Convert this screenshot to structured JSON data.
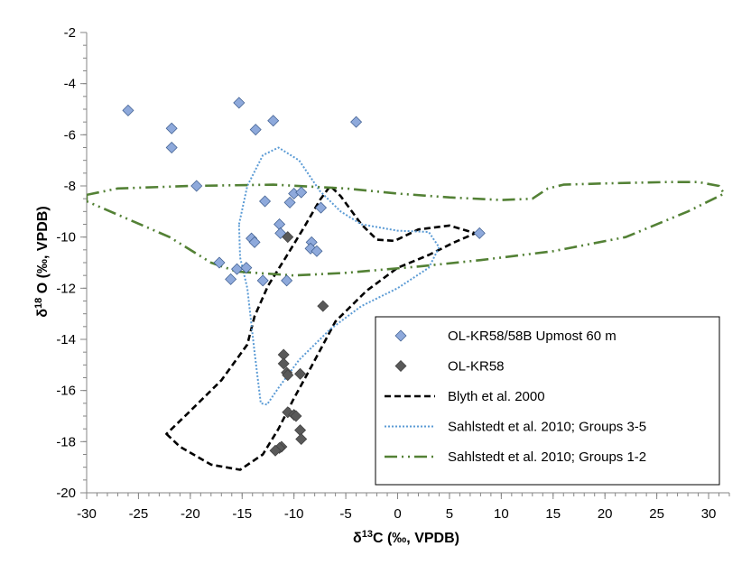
{
  "chart_data": {
    "type": "scatter",
    "xlabel_base": "δ",
    "xlabel_sup": "13",
    "xlabel_rest": "C (‰, VPDB)",
    "ylabel_base": "δ",
    "ylabel_sup": "18",
    "ylabel_rest": " O (‰, VPDB)",
    "xlim": [
      -30,
      32
    ],
    "ylim": [
      -20,
      -2
    ],
    "x_ticks": [
      -30,
      -25,
      -20,
      -15,
      -10,
      -5,
      0,
      5,
      10,
      15,
      20,
      25,
      30
    ],
    "y_ticks": [
      -2,
      -4,
      -6,
      -8,
      -10,
      -12,
      -14,
      -16,
      -18,
      -20
    ],
    "legend_position": "bottom-right",
    "series": [
      {
        "name": "OL-KR58/58B Upmost 60 m",
        "kind": "points",
        "marker": "diamond",
        "color": "#8EA9DB",
        "points": [
          [
            -26,
            -5.05
          ],
          [
            -21.8,
            -5.75
          ],
          [
            -21.8,
            -6.5
          ],
          [
            -19.4,
            -8.0
          ],
          [
            -17.2,
            -11.0
          ],
          [
            -15.3,
            -4.75
          ],
          [
            -13.7,
            -5.8
          ],
          [
            -12.0,
            -5.45
          ],
          [
            -4.0,
            -5.5
          ],
          [
            -12.8,
            -8.6
          ],
          [
            -10.4,
            -8.65
          ],
          [
            -10.0,
            -8.3
          ],
          [
            -9.3,
            -8.25
          ],
          [
            -7.4,
            -8.85
          ],
          [
            -11.4,
            -9.5
          ],
          [
            -11.3,
            -9.85
          ],
          [
            -14.1,
            -10.05
          ],
          [
            -13.8,
            -10.2
          ],
          [
            -8.3,
            -10.2
          ],
          [
            -8.4,
            -10.45
          ],
          [
            -7.8,
            -10.55
          ],
          [
            -15.5,
            -11.25
          ],
          [
            -14.6,
            -11.2
          ],
          [
            -16.1,
            -11.65
          ],
          [
            -13.0,
            -11.7
          ],
          [
            -10.7,
            -11.7
          ],
          [
            7.9,
            -9.85
          ]
        ]
      },
      {
        "name": "OL-KR58",
        "kind": "points",
        "marker": "diamond",
        "color": "#595959",
        "points": [
          [
            -10.6,
            -10.0
          ],
          [
            -7.2,
            -12.7
          ],
          [
            -11.0,
            -14.6
          ],
          [
            -11.0,
            -14.95
          ],
          [
            -10.7,
            -15.3
          ],
          [
            -10.6,
            -15.4
          ],
          [
            -9.4,
            -15.35
          ],
          [
            -10.6,
            -16.85
          ],
          [
            -10.0,
            -16.95
          ],
          [
            -9.8,
            -17.0
          ],
          [
            -9.4,
            -17.55
          ],
          [
            -9.3,
            -17.9
          ],
          [
            -11.2,
            -18.2
          ],
          [
            -11.4,
            -18.25
          ],
          [
            -11.8,
            -18.35
          ]
        ]
      },
      {
        "name": "Blyth et al. 2000",
        "kind": "polygon",
        "stroke": "#000000",
        "dash": "dashed",
        "points": [
          [
            -22.3,
            -17.7
          ],
          [
            -21,
            -18.2
          ],
          [
            -18,
            -18.9
          ],
          [
            -15.2,
            -19.1
          ],
          [
            -13,
            -18.5
          ],
          [
            -11.5,
            -17.5
          ],
          [
            -10,
            -16.3
          ],
          [
            -8.5,
            -15.2
          ],
          [
            -6,
            -13.3
          ],
          [
            -3,
            -12.1
          ],
          [
            0,
            -11.2
          ],
          [
            3,
            -10.7
          ],
          [
            5.5,
            -10.2
          ],
          [
            7.5,
            -9.85
          ],
          [
            5,
            -9.55
          ],
          [
            2,
            -9.7
          ],
          [
            -0.3,
            -10.15
          ],
          [
            -2,
            -10.1
          ],
          [
            -3.5,
            -9.5
          ],
          [
            -5.5,
            -8.4
          ],
          [
            -6.5,
            -8.0
          ],
          [
            -7.5,
            -8.55
          ],
          [
            -9,
            -9.6
          ],
          [
            -10.8,
            -10.8
          ],
          [
            -12.5,
            -11.9
          ],
          [
            -13.8,
            -13.1
          ],
          [
            -14.5,
            -14.2
          ],
          [
            -17,
            -15.6
          ],
          [
            -20,
            -16.8
          ],
          [
            -22.3,
            -17.7
          ]
        ]
      },
      {
        "name": "Sahlstedt et al. 2010; Groups 3-5",
        "kind": "polygon",
        "stroke": "#5B9BD5",
        "dash": "dotted",
        "points": [
          [
            -15.3,
            -9.5
          ],
          [
            -14.5,
            -8.0
          ],
          [
            -13,
            -6.8
          ],
          [
            -11.5,
            -6.5
          ],
          [
            -9.5,
            -7.0
          ],
          [
            -7.5,
            -8.2
          ],
          [
            -5.5,
            -9.0
          ],
          [
            -3.5,
            -9.5
          ],
          [
            0,
            -9.75
          ],
          [
            3,
            -9.8
          ],
          [
            4,
            -10.4
          ],
          [
            3,
            -11.2
          ],
          [
            0,
            -12.0
          ],
          [
            -3.5,
            -12.7
          ],
          [
            -6.5,
            -13.6
          ],
          [
            -9.5,
            -14.8
          ],
          [
            -11.5,
            -15.9
          ],
          [
            -12.6,
            -16.55
          ],
          [
            -13.2,
            -16.5
          ],
          [
            -13.8,
            -14.5
          ],
          [
            -14.5,
            -12.0
          ],
          [
            -15.2,
            -10.8
          ],
          [
            -15.3,
            -9.5
          ]
        ]
      },
      {
        "name": "Sahlstedt et al. 2010; Groups 1-2",
        "kind": "polygon",
        "stroke": "#538135",
        "dash": "dashdotdot",
        "points": [
          [
            -30,
            -8.35
          ],
          [
            -27,
            -8.1
          ],
          [
            -20,
            -8.0
          ],
          [
            -12,
            -7.95
          ],
          [
            -5,
            -8.1
          ],
          [
            0,
            -8.3
          ],
          [
            5,
            -8.45
          ],
          [
            10,
            -8.55
          ],
          [
            13,
            -8.5
          ],
          [
            14.5,
            -8.1
          ],
          [
            16,
            -7.95
          ],
          [
            20,
            -7.9
          ],
          [
            26,
            -7.85
          ],
          [
            29,
            -7.85
          ],
          [
            31,
            -8.0
          ],
          [
            31.5,
            -8.3
          ],
          [
            28,
            -9.0
          ],
          [
            22,
            -10.0
          ],
          [
            15,
            -10.55
          ],
          [
            8,
            -10.9
          ],
          [
            2,
            -11.15
          ],
          [
            -5,
            -11.4
          ],
          [
            -10,
            -11.5
          ],
          [
            -15.5,
            -11.35
          ],
          [
            -18,
            -11.0
          ],
          [
            -22,
            -10.0
          ],
          [
            -26,
            -9.3
          ],
          [
            -30,
            -8.6
          ],
          [
            -30,
            -8.35
          ]
        ]
      }
    ]
  }
}
